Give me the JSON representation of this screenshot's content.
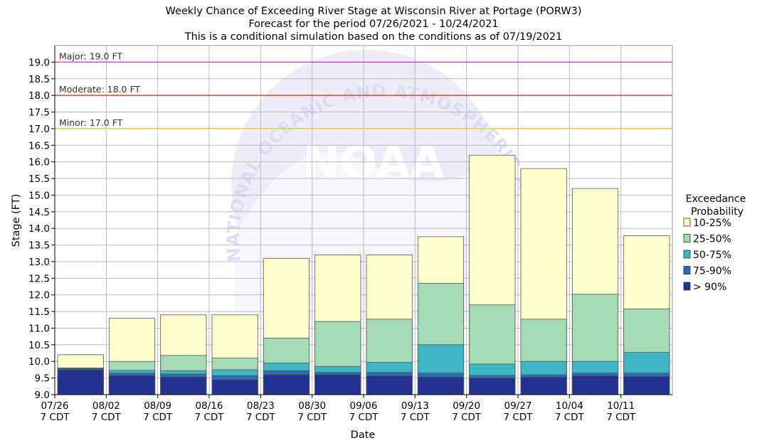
{
  "chart_data": {
    "type": "bar",
    "title": "Weekly Chance of Exceeding River Stage at Wisconsin River at Portage (PORW3)",
    "subtitle_1": "Forecast for the period 07/26/2021 - 10/24/2021",
    "subtitle_2": "This is a conditional simulation based on the conditions as of 07/19/2021",
    "xlabel": "Date",
    "ylabel": "Stage (FT)",
    "ylim": [
      9.0,
      19.5
    ],
    "yticks": [
      "9.0",
      "9.5",
      "10.0",
      "10.5",
      "11.0",
      "11.5",
      "12.0",
      "12.5",
      "13.0",
      "13.5",
      "14.0",
      "14.5",
      "15.0",
      "15.5",
      "16.0",
      "16.5",
      "17.0",
      "17.5",
      "18.0",
      "18.5",
      "19.0"
    ],
    "grid": true,
    "categories": [
      "07/26",
      "08/02",
      "08/09",
      "08/16",
      "08/23",
      "08/30",
      "09/06",
      "09/13",
      "09/20",
      "09/27",
      "10/04",
      "10/11"
    ],
    "category_sublabel": "7 CDT",
    "legend": {
      "title_line1": "Exceedance",
      "title_line2": "Probability",
      "placement": "right"
    },
    "series": [
      {
        "name": "> 90%",
        "color": "#23318f",
        "values": [
          9.75,
          9.58,
          9.53,
          9.45,
          9.6,
          9.6,
          9.57,
          9.53,
          9.5,
          9.53,
          9.57,
          9.55
        ]
      },
      {
        "name": "75-90%",
        "color": "#2a6fb5",
        "values": [
          9.78,
          9.65,
          9.62,
          9.57,
          9.72,
          9.67,
          9.67,
          9.65,
          9.58,
          9.6,
          9.65,
          9.65
        ]
      },
      {
        "name": "50-75%",
        "color": "#3db7c4",
        "values": [
          9.8,
          9.73,
          9.72,
          9.75,
          9.95,
          9.85,
          9.97,
          10.5,
          9.92,
          10.0,
          10.0,
          10.27
        ]
      },
      {
        "name": "25-50%",
        "color": "#a4dbb6",
        "values": [
          9.8,
          10.0,
          10.18,
          10.1,
          10.7,
          11.2,
          11.27,
          12.35,
          11.7,
          11.27,
          12.02,
          11.58
        ]
      },
      {
        "name": "10-25%",
        "color": "#ffffcc",
        "values": [
          10.2,
          11.3,
          11.4,
          11.4,
          13.1,
          13.2,
          13.2,
          13.75,
          16.2,
          15.8,
          15.2,
          13.78
        ]
      }
    ],
    "flood_stages": [
      {
        "label": "Major: 19.0 FT",
        "value": 19.0,
        "color": "#cc33cc"
      },
      {
        "label": "Moderate: 18.0 FT",
        "value": 18.0,
        "color": "#dd2222"
      },
      {
        "label": "Minor: 17.0 FT",
        "value": 17.0,
        "color": "#e8c23a"
      }
    ],
    "watermark": {
      "text": "NATIONAL OCEANIC AND ATMOSPHERIC ADMINISTRATION",
      "logo": "NOAA"
    }
  }
}
